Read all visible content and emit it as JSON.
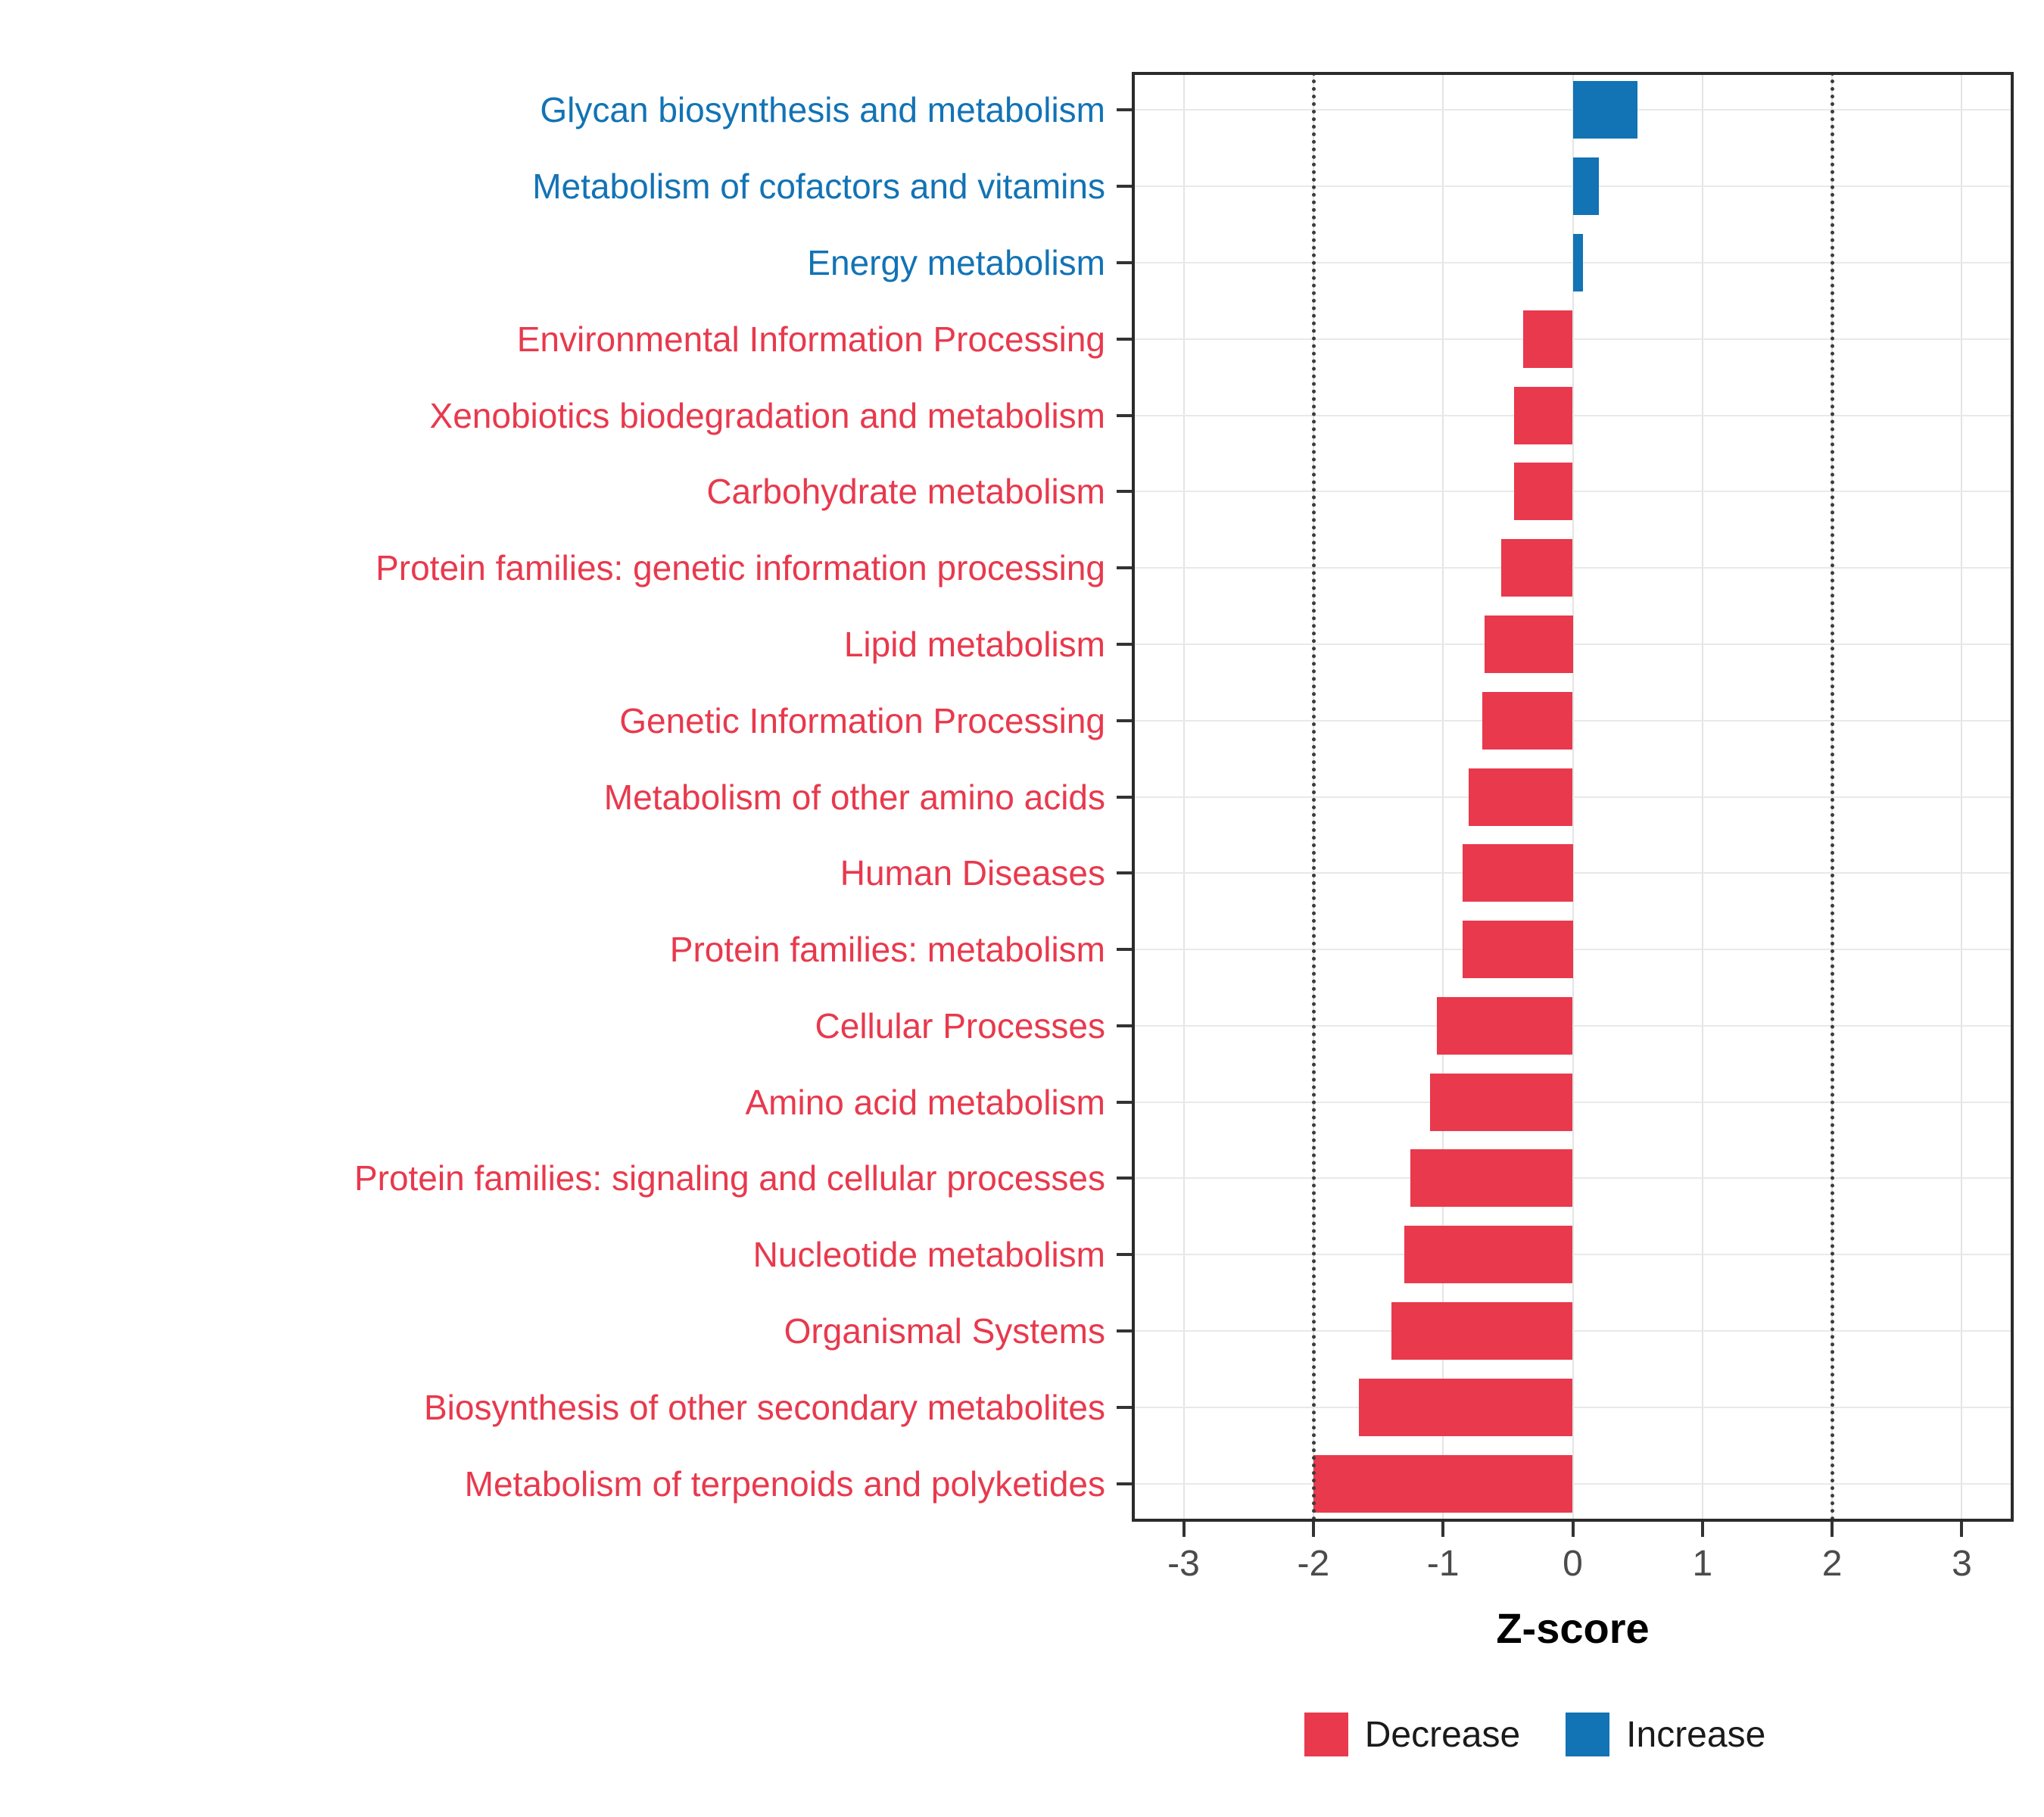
{
  "chart_data": {
    "type": "bar",
    "orientation": "horizontal",
    "title": "",
    "xlabel": "Z-score",
    "xlim": [
      -3.4,
      3.4
    ],
    "x_ticks": [
      -3,
      -2,
      -1,
      0,
      1,
      2,
      3
    ],
    "reference_lines": [
      -2,
      2
    ],
    "grid": true,
    "legend_position": "bottom",
    "categories": [
      "Glycan biosynthesis and metabolism",
      "Metabolism of cofactors and vitamins",
      "Energy metabolism",
      "Environmental Information Processing",
      "Xenobiotics biodegradation and metabolism",
      "Carbohydrate metabolism",
      "Protein families: genetic information processing",
      "Lipid metabolism",
      "Genetic Information Processing",
      "Metabolism of other amino acids",
      "Human Diseases",
      "Protein families: metabolism",
      "Cellular Processes",
      "Amino acid metabolism",
      "Protein families: signaling and cellular processes",
      "Nucleotide metabolism",
      "Organismal Systems",
      "Biosynthesis of other secondary metabolites",
      "Metabolism of terpenoids and polyketides"
    ],
    "values": [
      0.5,
      0.2,
      0.08,
      -0.38,
      -0.45,
      -0.45,
      -0.55,
      -0.68,
      -0.7,
      -0.8,
      -0.85,
      -0.85,
      -1.05,
      -1.1,
      -1.25,
      -1.3,
      -1.4,
      -1.65,
      -2.0
    ],
    "directions": [
      "increase",
      "increase",
      "increase",
      "decrease",
      "decrease",
      "decrease",
      "decrease",
      "decrease",
      "decrease",
      "decrease",
      "decrease",
      "decrease",
      "decrease",
      "decrease",
      "decrease",
      "decrease",
      "decrease",
      "decrease",
      "decrease"
    ],
    "legend": [
      {
        "label": "Decrease",
        "direction": "decrease"
      },
      {
        "label": "Increase",
        "direction": "increase"
      }
    ]
  },
  "colors": {
    "increase": "#1273B5",
    "decrease": "#E8394D",
    "axis_text": "#4b4b4b",
    "grid": "#e4e4e4",
    "reference_line": "#3c3c3c",
    "panel_border": "#2b2b2b"
  }
}
